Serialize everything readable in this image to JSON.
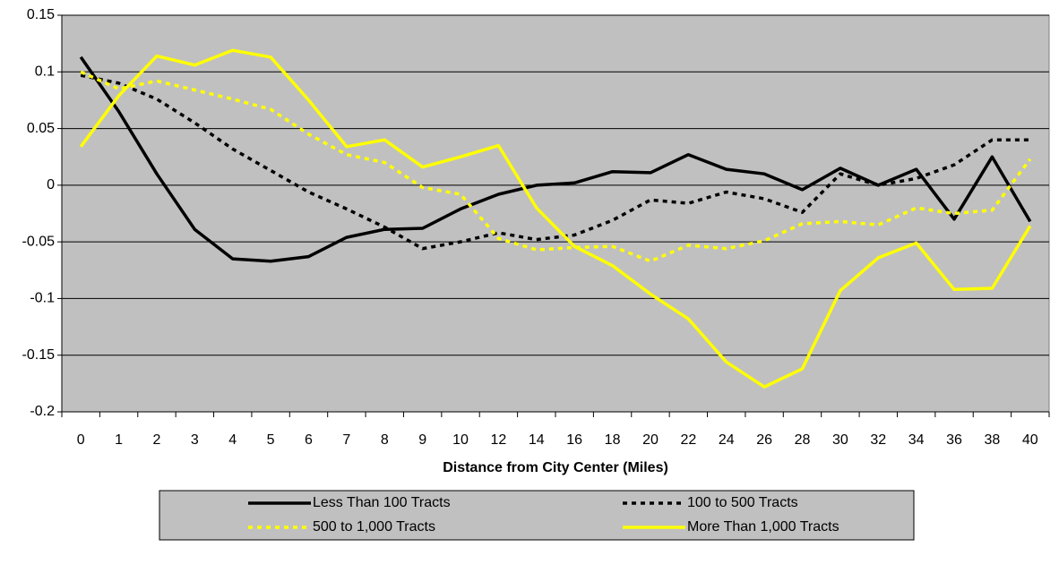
{
  "chart_data": {
    "type": "line",
    "x_label": "Distance from City Center (Miles)",
    "categories": [
      "0",
      "1",
      "2",
      "3",
      "4",
      "5",
      "6",
      "7",
      "8",
      "9",
      "10",
      "12",
      "14",
      "16",
      "18",
      "20",
      "22",
      "24",
      "26",
      "28",
      "30",
      "32",
      "34",
      "36",
      "38",
      "40"
    ],
    "series": [
      {
        "name": "Less Than 100 Tracts",
        "color": "#000000",
        "line_style": "solid",
        "values": [
          0.113,
          0.065,
          0.01,
          -0.039,
          -0.065,
          -0.067,
          -0.063,
          -0.046,
          -0.039,
          -0.038,
          -0.021,
          -0.008,
          0.0,
          0.002,
          0.012,
          0.011,
          0.027,
          0.014,
          0.01,
          -0.004,
          0.015,
          0.0,
          0.014,
          -0.03,
          0.025,
          -0.032
        ]
      },
      {
        "name": "100 to 500 Tracts",
        "color": "#000000",
        "line_style": "dotted",
        "values": [
          0.097,
          0.09,
          0.076,
          0.055,
          0.032,
          0.013,
          -0.006,
          -0.021,
          -0.037,
          -0.056,
          -0.05,
          -0.042,
          -0.048,
          -0.044,
          -0.031,
          -0.013,
          -0.016,
          -0.006,
          -0.012,
          -0.024,
          0.01,
          0.0,
          0.006,
          0.018,
          0.04,
          0.04
        ]
      },
      {
        "name": "500 to 1,000 Tracts",
        "color": "#ffff00",
        "line_style": "dotted",
        "values": [
          0.1,
          0.085,
          0.092,
          0.084,
          0.076,
          0.067,
          0.045,
          0.027,
          0.02,
          -0.002,
          -0.008,
          -0.047,
          -0.057,
          -0.055,
          -0.054,
          -0.067,
          -0.053,
          -0.056,
          -0.049,
          -0.034,
          -0.032,
          -0.035,
          -0.02,
          -0.025,
          -0.022,
          0.023
        ]
      },
      {
        "name": "More Than 1,000 Tracts",
        "color": "#ffff00",
        "line_style": "solid",
        "values": [
          0.034,
          0.079,
          0.114,
          0.106,
          0.119,
          0.113,
          0.075,
          0.034,
          0.04,
          0.016,
          0.025,
          0.035,
          -0.02,
          -0.054,
          -0.071,
          -0.096,
          -0.118,
          -0.156,
          -0.178,
          -0.162,
          -0.093,
          -0.064,
          -0.051,
          -0.092,
          -0.091,
          -0.036
        ]
      }
    ],
    "ylim": [
      -0.2,
      0.15
    ],
    "yticks": [
      -0.2,
      -0.15,
      -0.1,
      -0.05,
      0,
      0.05,
      0.1,
      0.15
    ],
    "grid": true,
    "background": "#c0c0c0"
  }
}
